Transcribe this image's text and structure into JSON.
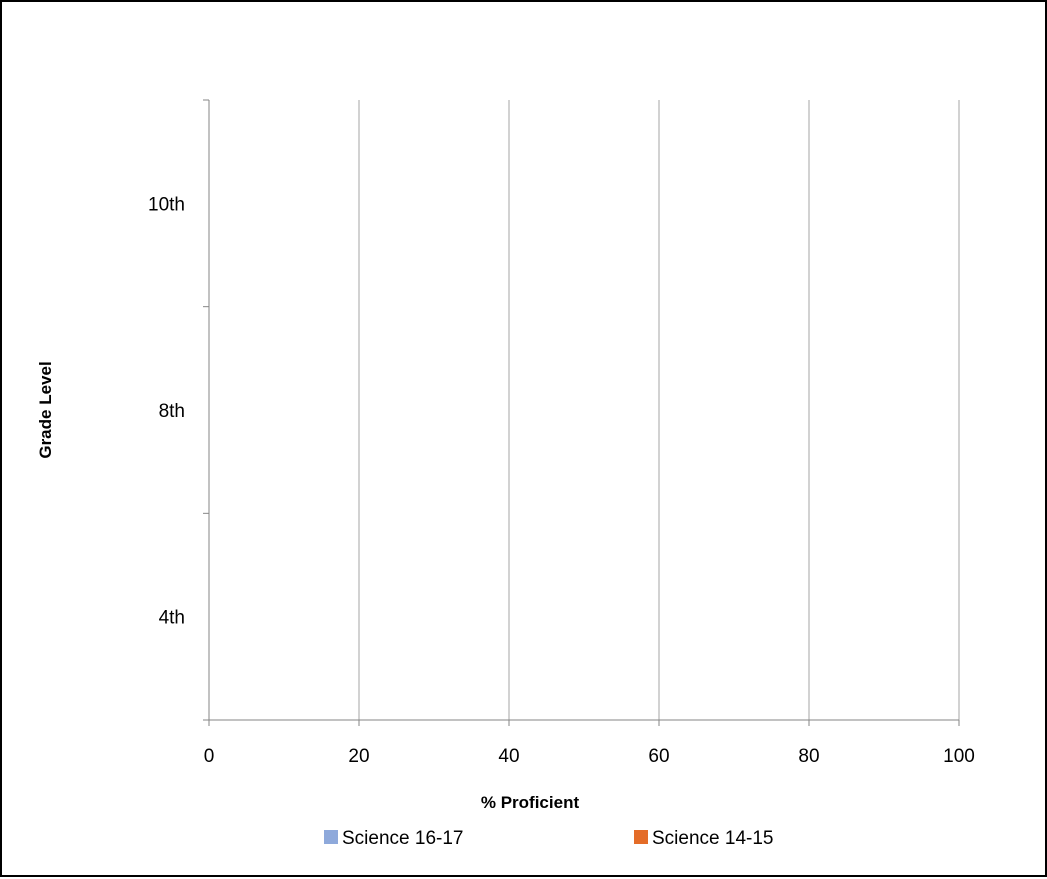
{
  "chart_data": {
    "type": "bar",
    "orientation": "horizontal",
    "categories": [
      "4th",
      "8th",
      "10th"
    ],
    "series": [
      {
        "name": "Science 16-17",
        "values": [
          null,
          null,
          null
        ],
        "color": "#8EA9DB"
      },
      {
        "name": "Science 14-15",
        "values": [
          null,
          null,
          null
        ],
        "color": "#E46C28"
      }
    ],
    "xlabel": "% Proficient",
    "ylabel": "Grade Level",
    "xlim": [
      0,
      100
    ],
    "x_ticks": [
      0,
      20,
      40,
      60,
      80,
      100
    ],
    "grid": "vertical",
    "legend_position": "bottom",
    "colors": {
      "gridline": "#A6A6A6",
      "axis": "#868686",
      "frame": "#000000"
    }
  }
}
